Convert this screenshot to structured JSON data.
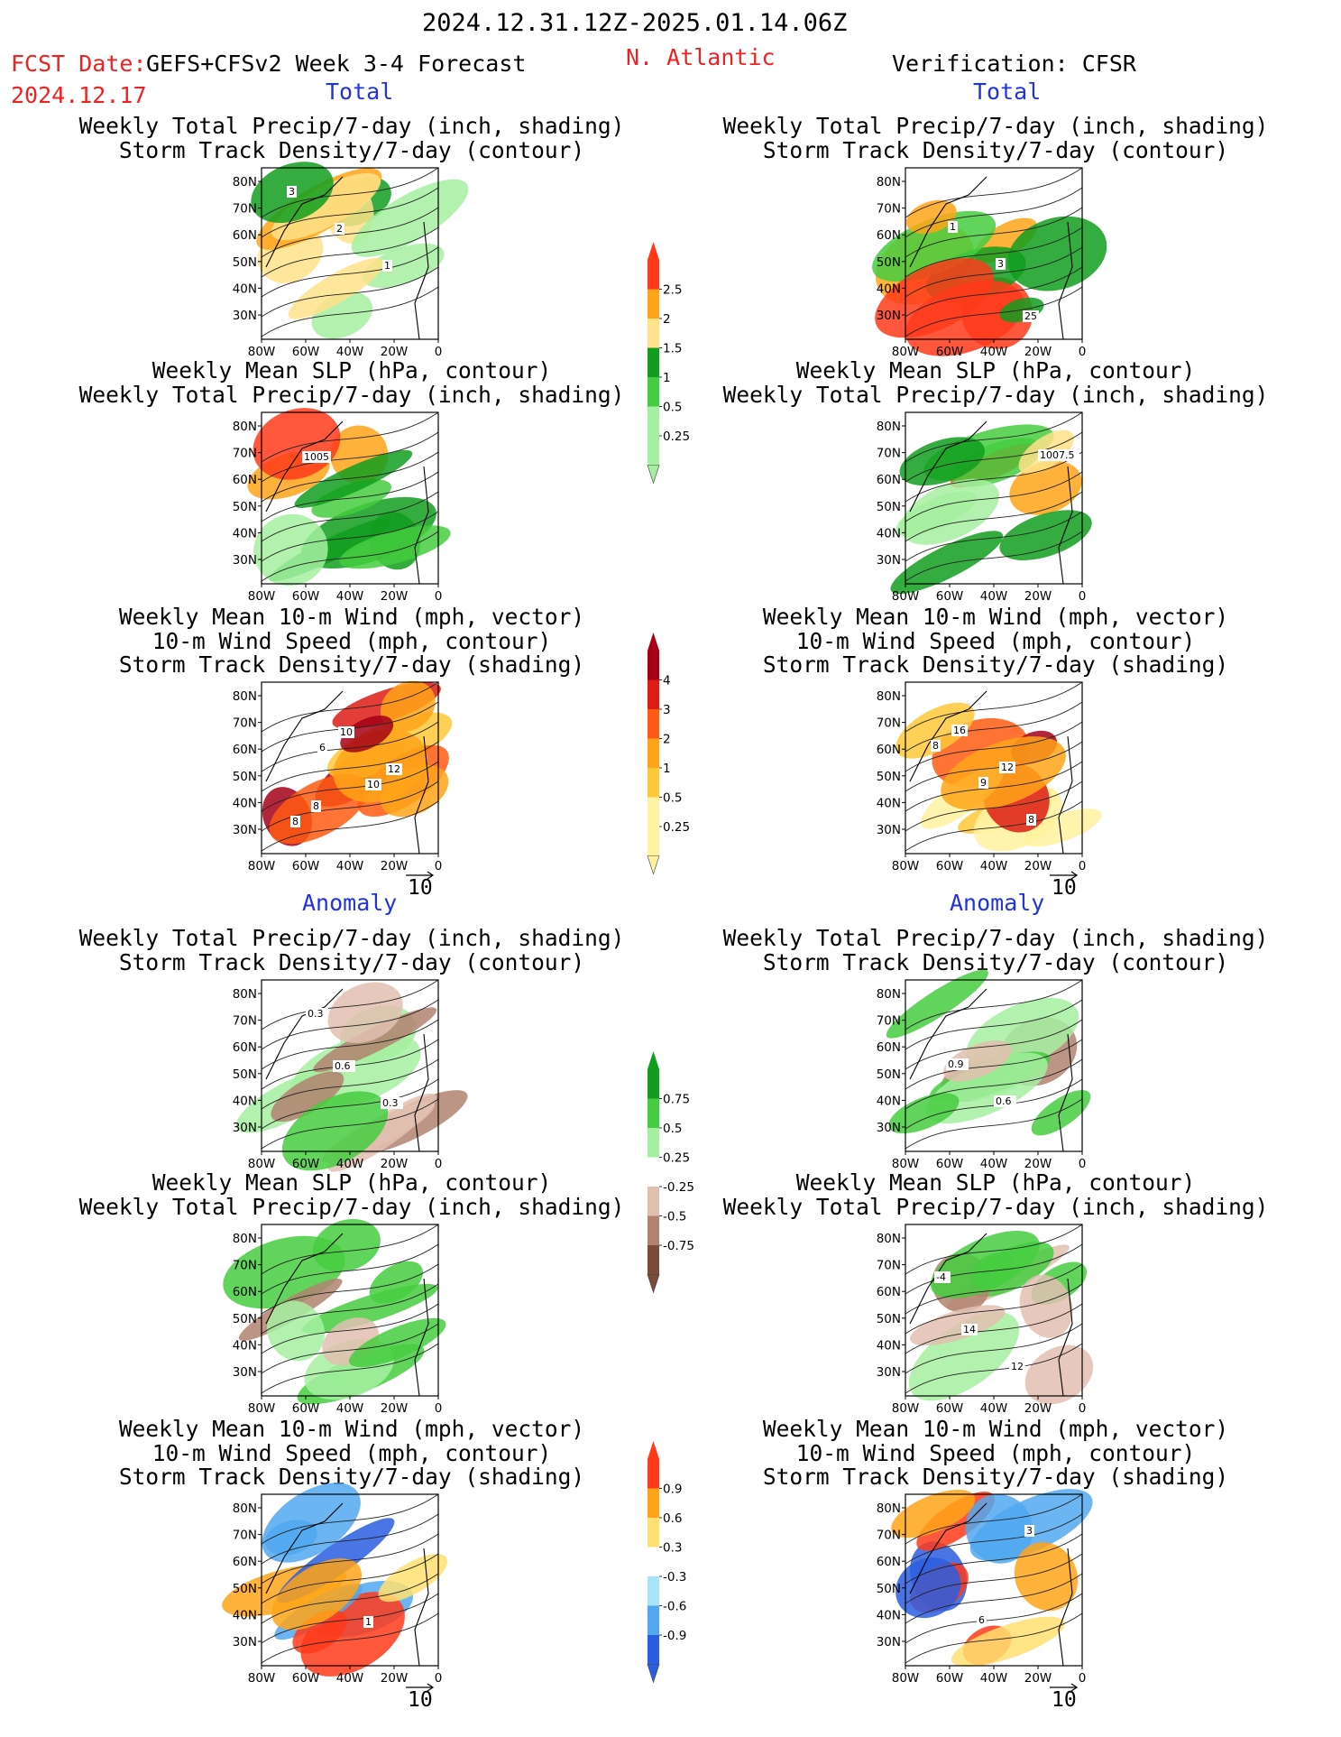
{
  "header": {
    "date_range": "2024.12.31.12Z-2025.01.14.06Z",
    "fcst_label": "FCST Date:",
    "model": "GEFS+CFSv2 Week 3-4 Forecast",
    "region": "N. Atlantic",
    "fcst_date": "2024.12.17",
    "verification": "Verification: CFSR"
  },
  "sections": {
    "total": "Total",
    "anomaly": "Anomaly"
  },
  "titles": {
    "precip_storm": [
      "Weekly Total Precip/7-day (inch, shading)",
      "Storm Track Density/7-day (contour)"
    ],
    "slp_precip": [
      "Weekly Mean SLP (hPa, contour)",
      "Weekly Total Precip/7-day (inch, shading)"
    ],
    "wind_storm": [
      "Weekly Mean 10-m Wind (mph, vector)",
      "10-m Wind Speed (mph, contour)",
      "Storm Track Density/7-day (shading)"
    ]
  },
  "axes": {
    "lat_ticks": [
      "80N",
      "70N",
      "60N",
      "50N",
      "40N",
      "30N"
    ],
    "lon_ticks": [
      "80W",
      "60W",
      "40W",
      "20W",
      "0"
    ]
  },
  "vector_ref": "10",
  "colors": {
    "accent_red": "#ee2222",
    "accent_blue": "#2233dd"
  },
  "chart_data": [
    {
      "type": "heatmap",
      "id": "legend_total_precip",
      "role": "colorbar",
      "ticks": [
        "2.5",
        "2",
        "1.5",
        "1",
        "0.5",
        "0.25"
      ],
      "colors": [
        "#ff3a1a",
        "#ffa418",
        "#ffe28a",
        "#119e1e",
        "#45cc40",
        "#a4f0a0"
      ]
    },
    {
      "type": "heatmap",
      "id": "legend_total_storm",
      "role": "colorbar",
      "ticks": [
        "4",
        "3",
        "2",
        "1",
        "0.5",
        "0.25"
      ],
      "colors": [
        "#a50016",
        "#dd1c14",
        "#ff5a12",
        "#ffa418",
        "#ffc838",
        "#fff2a0"
      ]
    },
    {
      "type": "heatmap",
      "id": "legend_anom_precip",
      "role": "colorbar",
      "ticks": [
        "0.75",
        "0.5",
        "0.25",
        "-0.25",
        "-0.5",
        "-0.75"
      ],
      "colors": [
        "#119e1e",
        "#45cc40",
        "#a4f0a0",
        "#ffffff",
        "#e2c0b0",
        "#b28270",
        "#7a4a3a"
      ]
    },
    {
      "type": "heatmap",
      "id": "legend_anom_storm",
      "role": "colorbar",
      "ticks": [
        "0.9",
        "0.6",
        "0.3",
        "-0.3",
        "-0.6",
        "-0.9"
      ],
      "colors": [
        "#ff3a1a",
        "#ffa418",
        "#ffe070",
        "#ffffff",
        "#a8e4f8",
        "#50a8f0",
        "#2a5ee0"
      ]
    },
    {
      "type": "heatmap",
      "id": "fcst_total_precip_storm",
      "contour_labels": [
        "3",
        "2",
        "1"
      ],
      "colormap": "total_precip"
    },
    {
      "type": "heatmap",
      "id": "fcst_total_slp_precip",
      "contour_labels": [
        "1005"
      ],
      "colormap": "total_precip"
    },
    {
      "type": "heatmap",
      "id": "fcst_total_wind_storm",
      "contour_labels": [
        "6",
        "10",
        "8",
        "10",
        "12",
        "8"
      ],
      "colormap": "total_storm"
    },
    {
      "type": "heatmap",
      "id": "fcst_anom_precip_storm",
      "contour_labels": [
        "0.6",
        "0.3",
        "0.3"
      ],
      "colormap": "anom_precip"
    },
    {
      "type": "heatmap",
      "id": "fcst_anom_slp_precip",
      "contour_labels": [],
      "colormap": "anom_precip"
    },
    {
      "type": "heatmap",
      "id": "fcst_anom_wind_storm",
      "contour_labels": [
        "1"
      ],
      "colormap": "anom_storm"
    },
    {
      "type": "heatmap",
      "id": "verif_total_precip_storm",
      "contour_labels": [
        "25",
        "1",
        "3"
      ],
      "colormap": "total_precip"
    },
    {
      "type": "heatmap",
      "id": "verif_total_slp_precip",
      "contour_labels": [
        "1007.5"
      ],
      "colormap": "total_precip"
    },
    {
      "type": "heatmap",
      "id": "verif_total_wind_storm",
      "contour_labels": [
        "8",
        "9",
        "8",
        "16",
        "12"
      ],
      "colormap": "total_storm"
    },
    {
      "type": "heatmap",
      "id": "verif_anom_precip_storm",
      "contour_labels": [
        "0.9",
        "0.6"
      ],
      "colormap": "anom_precip"
    },
    {
      "type": "heatmap",
      "id": "verif_anom_slp_precip",
      "contour_labels": [
        "14",
        "12",
        "-4"
      ],
      "colormap": "anom_precip"
    },
    {
      "type": "heatmap",
      "id": "verif_anom_wind_storm",
      "contour_labels": [
        "6",
        "3"
      ],
      "colormap": "anom_storm"
    }
  ]
}
